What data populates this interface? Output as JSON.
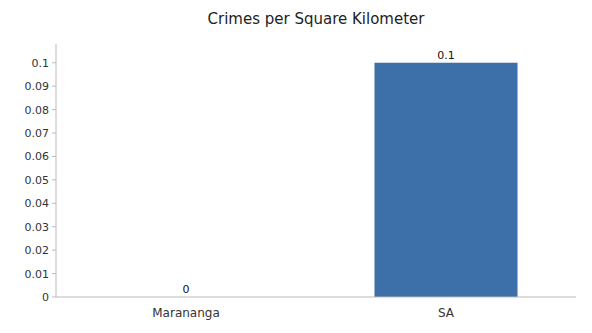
{
  "chart_data": {
    "type": "bar",
    "title": "Crimes per Square Kilometer",
    "categories": [
      "Marananga",
      "SA"
    ],
    "values": [
      0,
      0.1
    ],
    "color": "#3d6fa8",
    "ylim": [
      0,
      0.108
    ],
    "yticks": [
      0,
      0.01,
      0.02,
      0.03,
      0.04,
      0.05,
      0.06,
      0.07,
      0.08,
      0.09,
      0.1
    ],
    "grid": false,
    "data_labels": true
  }
}
